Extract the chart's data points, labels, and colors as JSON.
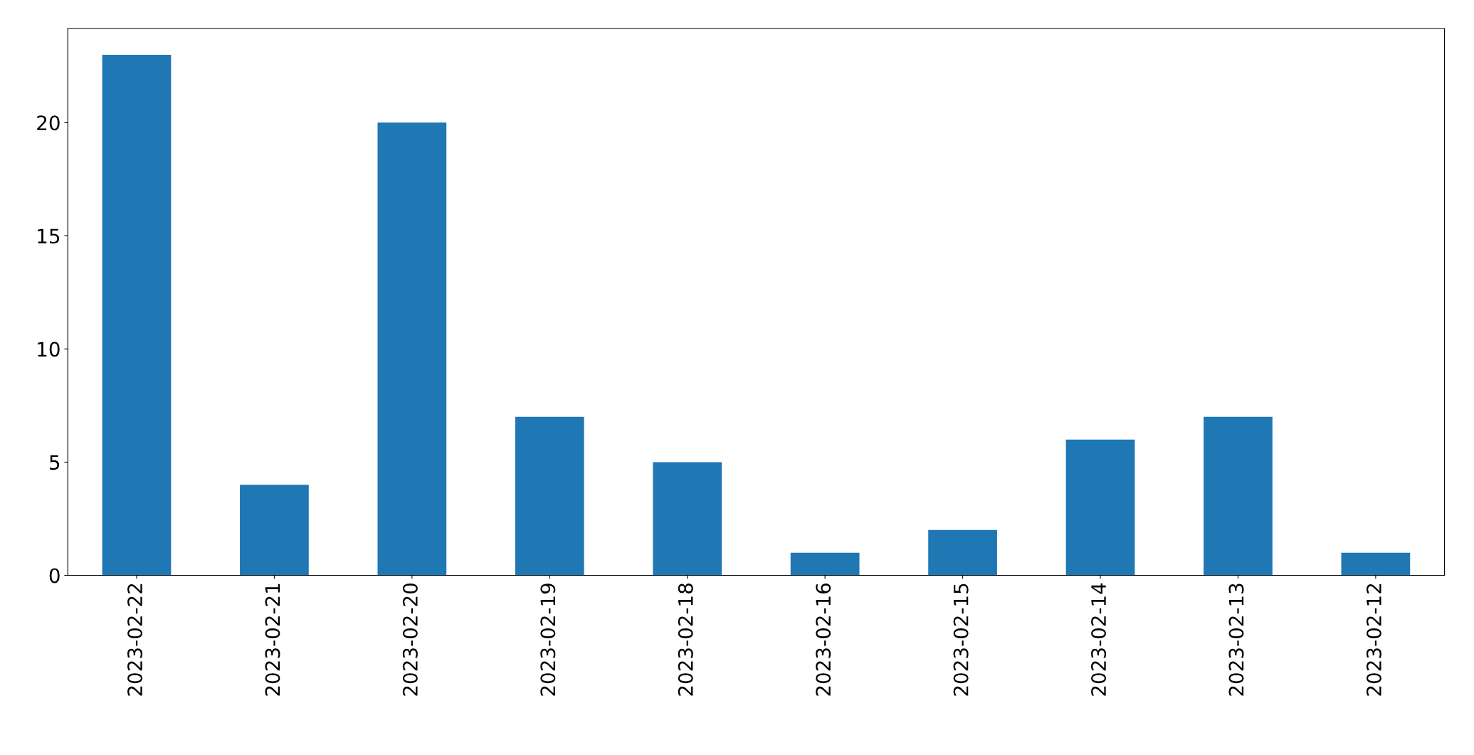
{
  "chart_data": {
    "type": "bar",
    "categories": [
      "2023-02-22",
      "2023-02-21",
      "2023-02-20",
      "2023-02-19",
      "2023-02-18",
      "2023-02-16",
      "2023-02-15",
      "2023-02-14",
      "2023-02-13",
      "2023-02-12"
    ],
    "values": [
      23,
      4,
      20,
      7,
      5,
      1,
      2,
      6,
      7,
      1
    ],
    "color": "#1f77b4",
    "ylim": [
      0,
      24.15
    ],
    "yticks": [
      0,
      5,
      10,
      15,
      20
    ],
    "grid": false,
    "legend": false
  }
}
